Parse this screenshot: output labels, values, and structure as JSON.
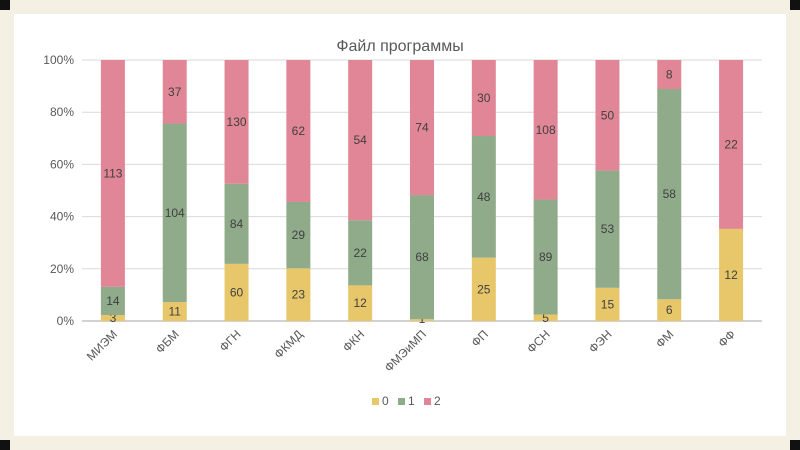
{
  "chart_data": {
    "type": "bar",
    "stacked": "percent",
    "title": "Файл программы",
    "xlabel": "",
    "ylabel": "",
    "ylim": [
      0,
      100
    ],
    "yticks": [
      "0%",
      "20%",
      "40%",
      "60%",
      "80%",
      "100%"
    ],
    "grid": true,
    "legend_position": "bottom",
    "categories": [
      "МИЭМ",
      "ФБМ",
      "ФГН",
      "ФКМД",
      "ФКН",
      "ФМЭиМП",
      "ФП",
      "ФСН",
      "ФЭН",
      "ФМ",
      "ФФ"
    ],
    "series": [
      {
        "name": "0",
        "color": "#e8c76a",
        "values": [
          3,
          11,
          60,
          23,
          12,
          1,
          25,
          5,
          15,
          6,
          12
        ]
      },
      {
        "name": "1",
        "color": "#8fab8a",
        "values": [
          14,
          104,
          84,
          29,
          22,
          68,
          48,
          89,
          53,
          58,
          0
        ]
      },
      {
        "name": "2",
        "color": "#e08696",
        "values": [
          113,
          37,
          130,
          62,
          54,
          74,
          30,
          108,
          50,
          8,
          22
        ]
      }
    ]
  }
}
